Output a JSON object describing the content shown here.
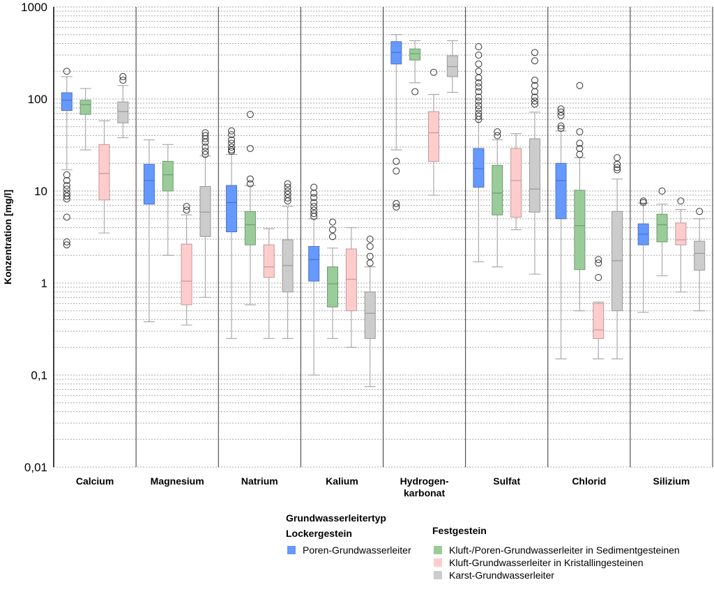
{
  "chart_data": {
    "type": "boxplot",
    "title": "",
    "ylabel": "Konzentration [mg/l]",
    "xlabel": "",
    "yscale": "log",
    "ylim": [
      0.01,
      1000
    ],
    "yticks": [
      {
        "value": 0.01,
        "label": "0,01"
      },
      {
        "value": 0.1,
        "label": "0,1"
      },
      {
        "value": 1,
        "label": "1"
      },
      {
        "value": 10,
        "label": "10"
      },
      {
        "value": 100,
        "label": "100"
      },
      {
        "value": 1000,
        "label": "1000"
      }
    ],
    "grid": "dotted minor log grid",
    "legend_position": "bottom",
    "categories": [
      "Calcium",
      "Magnesium",
      "Natrium",
      "Kalium",
      "Hydrogen-\nkarbonat",
      "Sulfat",
      "Chlorid",
      "Silizium"
    ],
    "series": [
      {
        "name": "Poren-Grundwasserleiter",
        "group": "Lockergestein",
        "color": "#6699ff",
        "boxes": [
          {
            "whisker_low": 17,
            "q1": 75,
            "median": 97,
            "q3": 117,
            "whisker_high": 175,
            "outliers": [
              200,
              15,
              13,
              11.5,
              10.5,
              9.5,
              8.8,
              8.2,
              5.2,
              2.8,
              2.6
            ]
          },
          {
            "whisker_low": 0.38,
            "q1": 7.2,
            "median": 13,
            "q3": 19.5,
            "whisker_high": 36,
            "outliers": []
          },
          {
            "whisker_low": 0.25,
            "q1": 3.6,
            "median": 7.5,
            "q3": 11.5,
            "whisker_high": 25,
            "outliers": [
              45,
              41,
              36,
              33,
              30,
              28,
              27
            ]
          },
          {
            "whisker_low": 0.1,
            "q1": 1.05,
            "median": 1.8,
            "q3": 2.5,
            "whisker_high": 5,
            "outliers": [
              11,
              9.5,
              8.5,
              7.5,
              6.8,
              6.2,
              5.7,
              5.3
            ]
          },
          {
            "whisker_low": 28,
            "q1": 240,
            "median": 320,
            "q3": 420,
            "whisker_high": 500,
            "outliers": [
              21,
              16.5,
              7.3,
              6.7
            ]
          },
          {
            "whisker_low": 1.7,
            "q1": 11,
            "median": 17.5,
            "q3": 29,
            "whisker_high": 60,
            "outliers": [
              370,
              300,
              240,
              200,
              170,
              150,
              135,
              120,
              105,
              95,
              85,
              78,
              70,
              65,
              60
            ]
          },
          {
            "whisker_low": 0.15,
            "q1": 5,
            "median": 13,
            "q3": 20,
            "whisker_high": 45,
            "outliers": [
              78,
              72,
              66,
              51,
              48
            ]
          },
          {
            "whisker_low": 0.48,
            "q1": 2.6,
            "median": 3.4,
            "q3": 4.4,
            "whisker_high": 7.4,
            "outliers": [
              7.8,
              7.5
            ]
          }
        ]
      },
      {
        "name": "Kluft-/Poren-Grundwasserleiter in Sedimentgesteinen",
        "group": "Festgestein",
        "color": "#99cc99",
        "boxes": [
          {
            "whisker_low": 28,
            "q1": 68,
            "median": 87,
            "q3": 97,
            "whisker_high": 130,
            "outliers": []
          },
          {
            "whisker_low": 2,
            "q1": 10,
            "median": 15,
            "q3": 21,
            "whisker_high": 32,
            "outliers": []
          },
          {
            "whisker_low": 0.58,
            "q1": 2.6,
            "median": 4.3,
            "q3": 6,
            "whisker_high": 11.5,
            "outliers": [
              68,
              29,
              13.5,
              12
            ]
          },
          {
            "whisker_low": 0.25,
            "q1": 0.55,
            "median": 0.98,
            "q3": 1.5,
            "whisker_high": 2.4,
            "outliers": [
              4.6,
              3.8,
              3.2
            ]
          },
          {
            "whisker_low": 150,
            "q1": 265,
            "median": 310,
            "q3": 350,
            "whisker_high": 430,
            "outliers": [
              120
            ]
          },
          {
            "whisker_low": 1.5,
            "q1": 5.5,
            "median": 9.5,
            "q3": 19,
            "whisker_high": 36,
            "outliers": [
              44,
              40
            ]
          },
          {
            "whisker_low": 0.5,
            "q1": 1.4,
            "median": 4.2,
            "q3": 10.2,
            "whisker_high": 23,
            "outliers": [
              140,
              44,
              33,
              29,
              25
            ]
          },
          {
            "whisker_low": 1.2,
            "q1": 2.8,
            "median": 4.3,
            "q3": 5.6,
            "whisker_high": 7.2,
            "outliers": [
              10
            ]
          }
        ]
      },
      {
        "name": "Kluft-Grundwasserleiter in Kristallingesteinen",
        "group": "Festgestein",
        "color": "#ffcccc",
        "boxes": [
          {
            "whisker_low": 3.5,
            "q1": 8,
            "median": 15.5,
            "q3": 32,
            "whisker_high": 58,
            "outliers": []
          },
          {
            "whisker_low": 0.35,
            "q1": 0.58,
            "median": 1.05,
            "q3": 2.65,
            "whisker_high": 5.5,
            "outliers": [
              6.8,
              6.2
            ]
          },
          {
            "whisker_low": 0.25,
            "q1": 1.15,
            "median": 1.5,
            "q3": 2.6,
            "whisker_high": 3.9,
            "outliers": []
          },
          {
            "whisker_low": 0.2,
            "q1": 0.5,
            "median": 1.1,
            "q3": 2.35,
            "whisker_high": 4,
            "outliers": []
          },
          {
            "whisker_low": 9,
            "q1": 21,
            "median": 43,
            "q3": 73,
            "whisker_high": 112,
            "outliers": [
              195
            ]
          },
          {
            "whisker_low": 3.8,
            "q1": 5.2,
            "median": 13,
            "q3": 29,
            "whisker_high": 42,
            "outliers": []
          },
          {
            "whisker_low": 0.15,
            "q1": 0.25,
            "median": 0.31,
            "q3": 0.6,
            "whisker_high": 0.62,
            "outliers": [
              1.8,
              1.65,
              1.15
            ]
          },
          {
            "whisker_low": 0.8,
            "q1": 2.6,
            "median": 2.95,
            "q3": 4.5,
            "whisker_high": 6.3,
            "outliers": [
              7.8
            ]
          }
        ]
      },
      {
        "name": "Karst-Grundwasserleiter",
        "group": "Festgestein",
        "color": "#cccccc",
        "boxes": [
          {
            "whisker_low": 38,
            "q1": 55,
            "median": 73,
            "q3": 93,
            "whisker_high": 140,
            "outliers": [
              175,
              160
            ]
          },
          {
            "whisker_low": 0.7,
            "q1": 3.2,
            "median": 5.9,
            "q3": 11.2,
            "whisker_high": 24,
            "outliers": [
              43,
              40,
              37,
              34,
              30,
              27,
              25
            ]
          },
          {
            "whisker_low": 0.25,
            "q1": 0.8,
            "median": 1.55,
            "q3": 2.95,
            "whisker_high": 6.8,
            "outliers": [
              12,
              11,
              10,
              9.2,
              8.4,
              7.8
            ]
          },
          {
            "whisker_low": 0.075,
            "q1": 0.25,
            "median": 0.47,
            "q3": 0.8,
            "whisker_high": 1.5,
            "outliers": [
              3,
              2.5,
              1.95,
              1.65
            ]
          },
          {
            "whisker_low": 118,
            "q1": 175,
            "median": 225,
            "q3": 295,
            "whisker_high": 430,
            "outliers": []
          },
          {
            "whisker_low": 1.25,
            "q1": 5.9,
            "median": 10.5,
            "q3": 37,
            "whisker_high": 72,
            "outliers": [
              320,
              260,
              160,
              140,
              120,
              105,
              95,
              88
            ]
          },
          {
            "whisker_low": 0.15,
            "q1": 0.5,
            "median": 1.75,
            "q3": 6,
            "whisker_high": 13.5,
            "outliers": [
              23,
              19.5,
              18,
              17
            ]
          },
          {
            "whisker_low": 0.5,
            "q1": 1.38,
            "median": 2.1,
            "q3": 2.85,
            "whisker_high": 5,
            "outliers": [
              6
            ]
          }
        ]
      }
    ]
  },
  "legend": {
    "title": "Grundwasserleitertyp",
    "group_locker": "Lockergestein",
    "group_fest": "Festgestein",
    "items": [
      {
        "label": "Poren-Grundwasserleiter",
        "color": "#6699ff"
      },
      {
        "label": "Kluft-/Poren-Grundwasserleiter in Sedimentgesteinen",
        "color": "#99cc99"
      },
      {
        "label": "Kluft-Grundwasserleiter in Kristallingesteinen",
        "color": "#ffcccc"
      },
      {
        "label": "Karst-Grundwasserleiter",
        "color": "#cccccc"
      }
    ]
  }
}
